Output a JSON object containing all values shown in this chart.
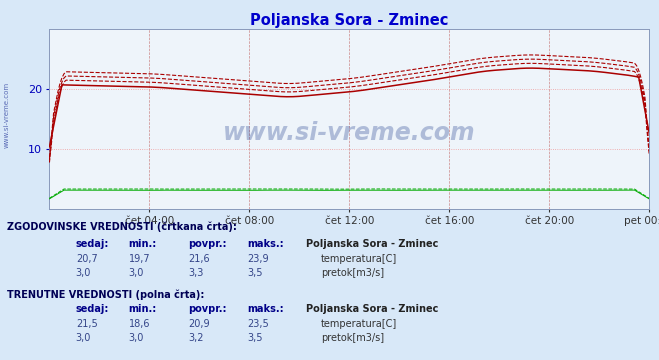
{
  "title": "Poljanska Sora - Zminec",
  "title_color": "#0000cc",
  "bg_color": "#d8e8f8",
  "plot_bg_color": "#eef4fa",
  "x_tick_labels": [
    "čet 04:00",
    "čet 08:00",
    "čet 12:00",
    "čet 16:00",
    "čet 20:00",
    "pet 00:00"
  ],
  "x_tick_positions": [
    48,
    96,
    144,
    192,
    240,
    288
  ],
  "y_ticks": [
    10,
    20
  ],
  "y_label_color": "#0000bb",
  "temp_color": "#aa0000",
  "flow_color": "#00aa00",
  "watermark_color": "#1a3a8a",
  "n_points": 289,
  "y_min": 0,
  "y_max": 30,
  "hist_header": "ZGODOVINSKE VREDNOSTI (črtkana črta):",
  "curr_header": "TRENUTNE VREDNOSTI (polna črta):",
  "col_headers": [
    "sedaj:",
    "min.:",
    "povpr.:",
    "maks.:"
  ],
  "station_name": "Poljanska Sora - Zminec",
  "temp_label": "temperatura[C]",
  "flow_label": "pretok[m3/s]",
  "temp_hist_vals": [
    "20,7",
    "19,7",
    "21,6",
    "23,9"
  ],
  "flow_hist_vals": [
    "3,0",
    "3,0",
    "3,3",
    "3,5"
  ],
  "temp_curr_vals": [
    "21,5",
    "18,6",
    "20,9",
    "23,5"
  ],
  "flow_curr_vals": [
    "3,0",
    "3,0",
    "3,2",
    "3,5"
  ],
  "sidebar_label": "www.si-vreme.com"
}
